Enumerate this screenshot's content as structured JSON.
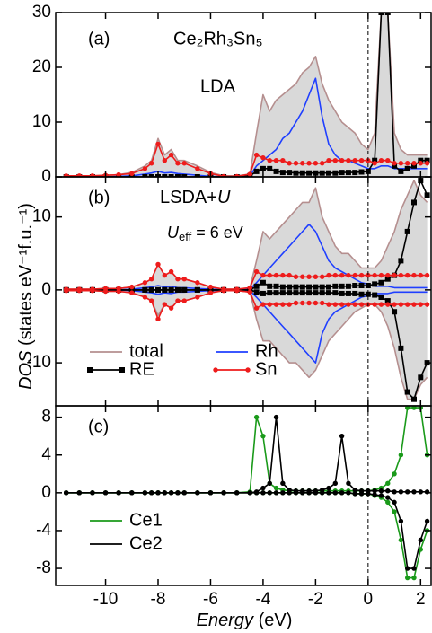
{
  "chart_data": [
    {
      "type": "line",
      "label": "(a)",
      "title": "Ce₂Rh₃Sn₅",
      "subtitle": "LDA",
      "xlim": [
        -11.9,
        2.4
      ],
      "xticks": [
        -10,
        -8,
        -6,
        -4,
        -2,
        0,
        2
      ],
      "ylim": [
        0,
        30
      ],
      "yticks": [
        0,
        10,
        20,
        30
      ],
      "reference_line_x": 0,
      "x": [
        -11.5,
        -11,
        -10.5,
        -10,
        -9.5,
        -9,
        -8.5,
        -8.25,
        -8,
        -7.75,
        -7.5,
        -7.25,
        -7,
        -6.5,
        -6,
        -5.5,
        -5,
        -4.5,
        -4.25,
        -4,
        -3.75,
        -3.5,
        -3.25,
        -3,
        -2.75,
        -2.5,
        -2.25,
        -2,
        -1.75,
        -1.5,
        -1.25,
        -1,
        -0.75,
        -0.5,
        -0.25,
        0,
        0.25,
        0.5,
        0.75,
        1,
        1.25,
        1.5,
        1.75,
        2,
        2.25
      ],
      "series": [
        {
          "color": "#b58f8f",
          "fill": "#d9d9d9",
          "values": [
            0.2,
            0.2,
            0.2,
            0.3,
            0.4,
            0.8,
            2,
            3,
            7,
            4,
            5,
            3,
            3,
            2,
            0.8,
            0.2,
            0.2,
            0.5,
            8,
            15,
            12,
            14,
            15,
            16,
            17,
            19,
            20,
            22,
            17,
            14,
            12,
            10,
            9,
            8,
            6,
            5,
            8,
            30,
            30,
            8,
            5,
            4,
            4,
            4,
            4
          ]
        },
        {
          "color": "#1f3fff",
          "values": [
            0,
            0,
            0,
            0,
            0.1,
            0.2,
            0.5,
            0.7,
            1,
            0.7,
            0.8,
            0.6,
            0.5,
            0.3,
            0.1,
            0,
            0,
            0.2,
            2,
            3,
            4,
            5,
            7,
            8,
            10,
            12,
            15,
            18,
            11,
            6,
            4,
            3,
            3,
            2.5,
            2,
            1.5,
            1.5,
            2,
            2,
            1.5,
            1.5,
            1.5,
            1.5,
            1.5,
            1.5
          ]
        },
        {
          "color": "#000000",
          "marker": "square",
          "values": [
            0,
            0,
            0,
            0,
            0,
            0,
            0,
            0,
            0,
            0,
            0,
            0,
            0,
            0,
            0,
            0,
            0,
            0.2,
            1,
            1.5,
            1.5,
            1,
            0.8,
            0.8,
            0.7,
            0.7,
            0.7,
            0.7,
            0.7,
            0.7,
            0.7,
            0.8,
            0.8,
            0.8,
            0.9,
            1,
            3,
            30,
            30,
            2,
            1,
            1.5,
            2,
            3,
            3
          ]
        },
        {
          "color": "#ee1c1c",
          "marker": "circle",
          "values": [
            0.2,
            0.2,
            0.2,
            0.3,
            0.4,
            0.6,
            1.5,
            2.5,
            6,
            3,
            4,
            2.5,
            2.5,
            1.5,
            0.6,
            0.1,
            0.1,
            0.5,
            4,
            3.5,
            3,
            3,
            3,
            2.5,
            2.5,
            2.5,
            2.5,
            2.5,
            2.5,
            3,
            3,
            3,
            3,
            3,
            3,
            3,
            2.5,
            3,
            3,
            2.5,
            2.5,
            2.5,
            2.5,
            2.5,
            2.5
          ]
        }
      ]
    },
    {
      "type": "line",
      "label": "(b)",
      "title": {
        "text": "LSDA+",
        "italic": "U"
      },
      "annotation": {
        "symbol": "U",
        "subscript": "eff",
        "text": " = 6 eV"
      },
      "ylabel": {
        "italic": "DOS",
        "text": " (states eV⁻¹f.u.⁻¹)"
      },
      "legend": true,
      "xlim": [
        -11.9,
        2.4
      ],
      "xticks": [
        -10,
        -8,
        -6,
        -4,
        -2,
        0,
        2
      ],
      "ylim": [
        -15.9,
        15.5
      ],
      "yticks": [
        -10,
        0,
        10
      ],
      "reference_line_x": 0,
      "x": [
        -11.5,
        -11,
        -10.5,
        -10,
        -9.5,
        -9,
        -8.5,
        -8.25,
        -8,
        -7.75,
        -7.5,
        -7.25,
        -7,
        -6.5,
        -6,
        -5.5,
        -5,
        -4.5,
        -4.25,
        -4,
        -3.75,
        -3.5,
        -3.25,
        -3,
        -2.75,
        -2.5,
        -2.25,
        -2,
        -1.75,
        -1.5,
        -1.25,
        -1,
        -0.75,
        -0.5,
        -0.25,
        0,
        0.25,
        0.5,
        0.75,
        1,
        1.25,
        1.5,
        1.75,
        2,
        2.25
      ],
      "series": [
        {
          "name": "total",
          "color": "#b58f8f",
          "fill": "#d9d9d9",
          "values": [
            0.1,
            0.1,
            0.1,
            0.2,
            0.2,
            0.4,
            1,
            1.5,
            3.5,
            2,
            2.5,
            1.5,
            1.5,
            1,
            0.4,
            0.1,
            0.1,
            0.3,
            4,
            8,
            7,
            8,
            9,
            10,
            11,
            12,
            12,
            14,
            10,
            8,
            6,
            5,
            5,
            4,
            3,
            3,
            3,
            4,
            6,
            8,
            11,
            13,
            15,
            13,
            12
          ],
          "values_down": [
            -0.1,
            -0.1,
            -0.1,
            -0.2,
            -0.2,
            -0.4,
            -1,
            -1.5,
            -3.5,
            -2,
            -2.5,
            -1.5,
            -1.5,
            -1,
            -0.4,
            -0.1,
            -0.1,
            -0.3,
            -4,
            -7,
            -7,
            -8,
            -9,
            -10,
            -10,
            -11,
            -12,
            -11,
            -9,
            -7,
            -6,
            -5,
            -4,
            -3,
            -2.5,
            -2,
            -2,
            -3,
            -5,
            -8,
            -12,
            -15,
            -15,
            -13,
            -12
          ]
        },
        {
          "name": "Rh",
          "color": "#1f3fff",
          "values": [
            0,
            0,
            0,
            0,
            0,
            0.1,
            0.3,
            0.4,
            0.6,
            0.4,
            0.5,
            0.3,
            0.3,
            0.2,
            0.1,
            0,
            0,
            0.1,
            1,
            2,
            3,
            4,
            5,
            6,
            7,
            8,
            9,
            8,
            6,
            4,
            3,
            2.5,
            2,
            1.5,
            1,
            0.8,
            0.5,
            0.5,
            0.5,
            0.3,
            0.3,
            0.3,
            0.3,
            0.3,
            0.3
          ],
          "values_down": [
            0,
            0,
            0,
            0,
            0,
            -0.1,
            -0.3,
            -0.4,
            -0.6,
            -0.4,
            -0.5,
            -0.3,
            -0.3,
            -0.2,
            -0.1,
            0,
            0,
            -0.1,
            -1,
            -2,
            -3,
            -4,
            -5,
            -6,
            -7,
            -8,
            -9,
            -10,
            -6,
            -4,
            -3,
            -2.5,
            -2,
            -1.5,
            -1,
            -0.8,
            -0.5,
            -0.5,
            -0.5,
            -0.3,
            -0.3,
            -0.3,
            -0.3,
            -0.3,
            -0.3
          ]
        },
        {
          "name": "RE",
          "color": "#000000",
          "marker": "square",
          "values": [
            0,
            0,
            0,
            0,
            0,
            0,
            0,
            0,
            0,
            0,
            0,
            0,
            0,
            0,
            0,
            0,
            0,
            0,
            0.5,
            1,
            0.5,
            0.5,
            0.4,
            0.4,
            0.4,
            0.4,
            0.4,
            0.4,
            0.4,
            0.4,
            0.5,
            0.5,
            0.5,
            0.6,
            0.6,
            0.6,
            0.8,
            1,
            1.5,
            2,
            4,
            8,
            12,
            15,
            13
          ],
          "values_down": [
            0,
            0,
            0,
            0,
            0,
            0,
            0,
            0,
            0,
            0,
            0,
            0,
            0,
            0,
            0,
            0,
            0,
            0,
            -0.3,
            -0.5,
            -0.4,
            -0.4,
            -0.4,
            -0.4,
            -0.4,
            -0.4,
            -0.4,
            -0.4,
            -0.4,
            -0.4,
            -0.4,
            -0.5,
            -0.5,
            -0.5,
            -0.6,
            -0.6,
            -0.7,
            -1,
            -1.5,
            -3,
            -8,
            -14,
            -15,
            -12,
            -10
          ]
        },
        {
          "name": "Sn",
          "color": "#ee1c1c",
          "marker": "circle",
          "values": [
            0.1,
            0.1,
            0.1,
            0.2,
            0.2,
            0.4,
            1,
            1.5,
            3.5,
            2,
            2.5,
            1.5,
            1.5,
            1,
            0.4,
            0.1,
            0.1,
            0.3,
            2.5,
            2,
            2,
            2,
            2,
            2,
            1.8,
            1.8,
            1.8,
            1.8,
            1.8,
            2,
            2,
            2,
            2,
            2,
            2,
            2,
            2,
            2,
            2,
            2,
            2,
            2,
            2,
            2,
            2
          ],
          "values_down": [
            -0.1,
            -0.1,
            -0.1,
            -0.2,
            -0.2,
            -0.4,
            -1,
            -1.5,
            -4,
            -2,
            -2.5,
            -1.5,
            -1.5,
            -1,
            -0.4,
            -0.1,
            -0.1,
            -0.3,
            -2.5,
            -2,
            -2,
            -2,
            -2,
            -2,
            -1.8,
            -1.8,
            -1.8,
            -1.8,
            -1.8,
            -2,
            -2,
            -2,
            -2,
            -2,
            -2,
            -2,
            -2,
            -2,
            -2,
            -2,
            -2,
            -2,
            -2,
            -2,
            -2
          ]
        }
      ]
    },
    {
      "type": "line",
      "label": "(c)",
      "xlabel": {
        "italic": "Energy",
        "text": " (eV)"
      },
      "legend": true,
      "xtick_labels": true,
      "xlim": [
        -11.9,
        2.4
      ],
      "xticks": [
        -10,
        -8,
        -6,
        -4,
        -2,
        0,
        2
      ],
      "ylim": [
        -9.8,
        9.2
      ],
      "yticks": [
        -8,
        -4,
        0,
        4,
        8
      ],
      "reference_line_x": 0,
      "x": [
        -11.5,
        -11,
        -10.5,
        -10,
        -9.5,
        -9,
        -8.5,
        -8.25,
        -8,
        -7.75,
        -7.5,
        -7.25,
        -7,
        -6.5,
        -6,
        -5.5,
        -5,
        -4.5,
        -4.25,
        -4,
        -3.75,
        -3.5,
        -3.25,
        -3,
        -2.75,
        -2.5,
        -2.25,
        -2,
        -1.75,
        -1.5,
        -1.25,
        -1,
        -0.75,
        -0.5,
        -0.25,
        0,
        0.25,
        0.5,
        0.75,
        1,
        1.25,
        1.5,
        1.75,
        2,
        2.25
      ],
      "series": [
        {
          "name": "Ce1",
          "color": "#1a9a1a",
          "marker": "circle",
          "values": [
            0,
            0,
            0,
            0,
            0,
            0,
            0,
            0,
            0,
            0,
            0,
            0,
            0,
            0,
            0,
            0,
            0,
            0.1,
            8,
            6,
            1,
            0.5,
            0.3,
            0.2,
            0.2,
            0.2,
            0.2,
            0.2,
            0.2,
            0.2,
            0.2,
            0.2,
            0.2,
            0.2,
            0.2,
            0.2,
            0.3,
            0.5,
            1,
            2,
            4,
            9,
            9,
            9,
            4
          ],
          "values_down": [
            0,
            0,
            0,
            0,
            0,
            0,
            0,
            0,
            0,
            0,
            0,
            0,
            0,
            0,
            0,
            0,
            0,
            0,
            0,
            0,
            0,
            0,
            0,
            0,
            0,
            0,
            0,
            0,
            0,
            0,
            0,
            0,
            0,
            -0.1,
            -0.1,
            -0.1,
            -0.3,
            -0.5,
            -1,
            -2,
            -5,
            -9,
            -9,
            -6,
            -4
          ]
        },
        {
          "name": "Ce2",
          "color": "#000000",
          "marker": "circle",
          "values": [
            0,
            0,
            0,
            0,
            0,
            0,
            0,
            0,
            0,
            0,
            0,
            0,
            0,
            0,
            0,
            0,
            0,
            0,
            0.1,
            0.5,
            1,
            8,
            1,
            0.3,
            0.2,
            0.2,
            0.2,
            0.2,
            0.3,
            0.5,
            1,
            6,
            1,
            0.3,
            0.2,
            0.2,
            0.2,
            0.2,
            0.2,
            0.1,
            0.1,
            0.1,
            0.1,
            0.1,
            0.1
          ],
          "values_down": [
            0,
            0,
            0,
            0,
            0,
            0,
            0,
            0,
            0,
            0,
            0,
            0,
            0,
            0,
            0,
            0,
            0,
            0,
            0,
            0,
            0,
            0,
            0,
            0,
            0,
            0,
            0,
            0,
            0,
            0,
            0,
            0,
            0,
            -0.1,
            -0.1,
            -0.1,
            -0.2,
            -0.3,
            -0.5,
            -1,
            -3,
            -8,
            -8,
            -5,
            -3
          ]
        }
      ]
    }
  ]
}
